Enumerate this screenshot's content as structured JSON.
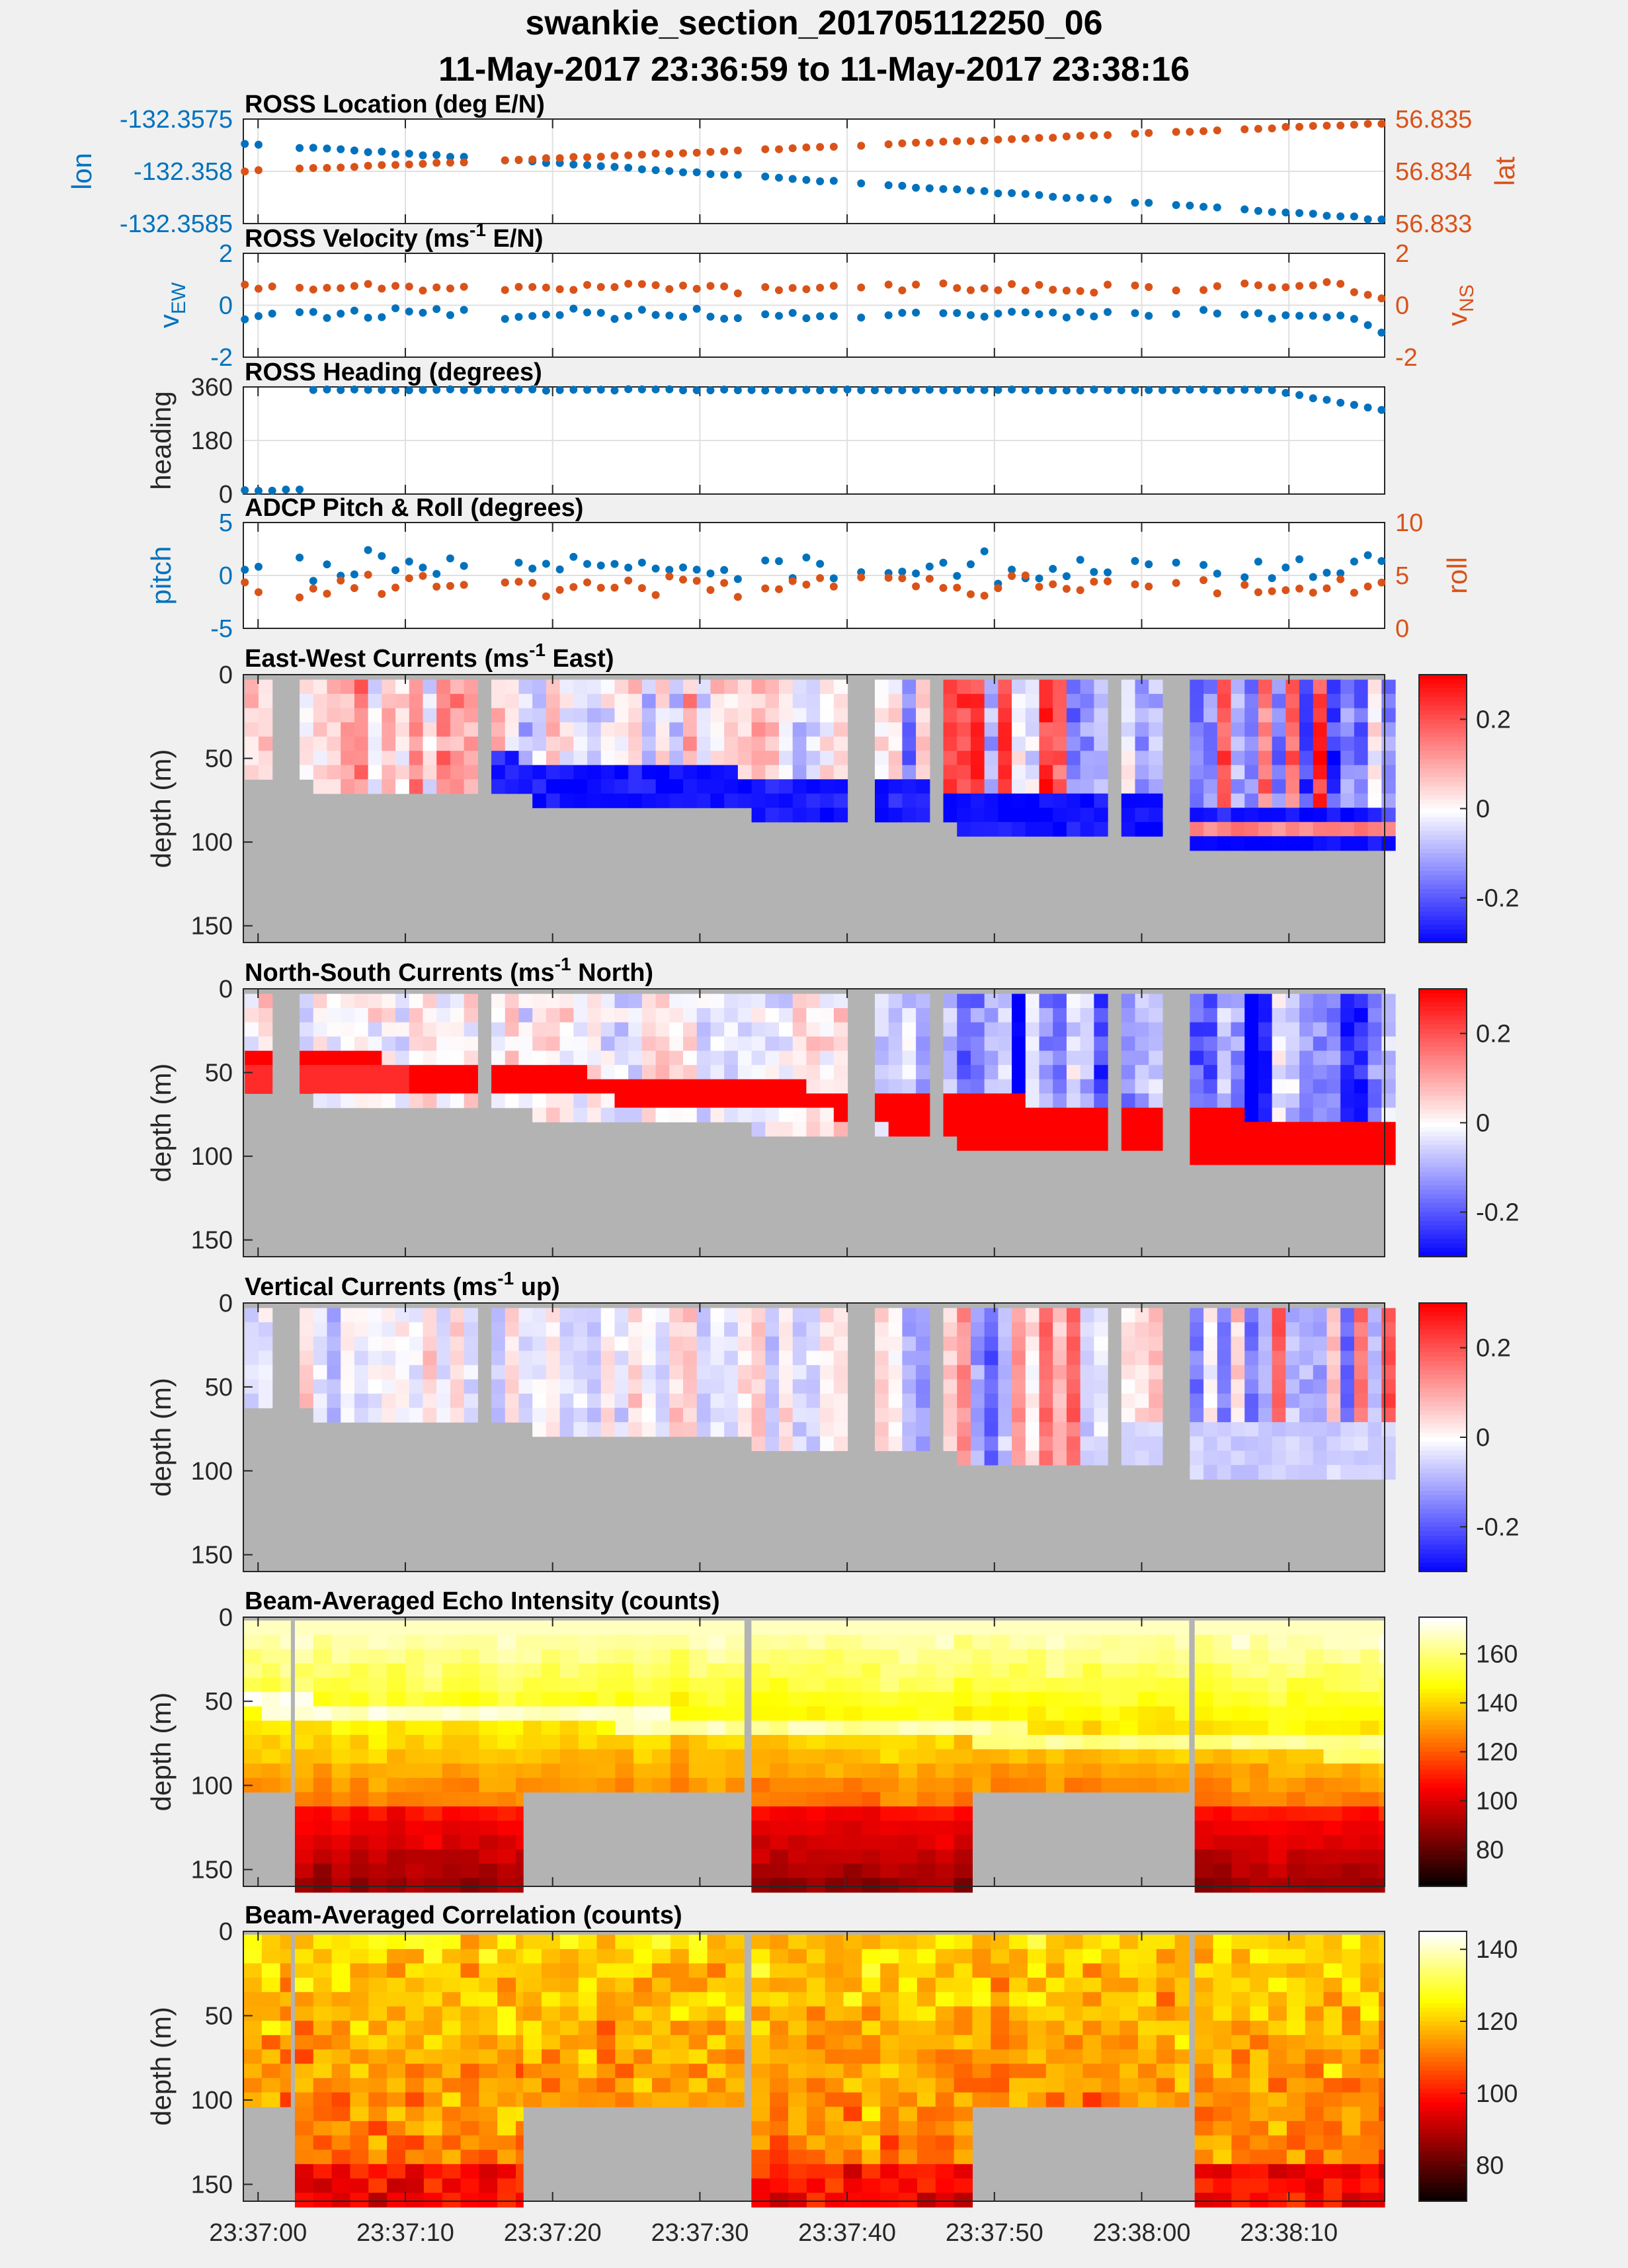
{
  "title": {
    "line1": "swankie_section_201705112250_06",
    "line2": "11-May-2017 23:36:59 to 11-May-2017 23:38:16"
  },
  "colors": {
    "blue": "#0072BD",
    "orange": "#D95319",
    "background": "#f0f0f0",
    "nodata": "#b3b3b3"
  },
  "time_axis": {
    "tick_labels": [
      "23:37:00",
      "23:37:10",
      "23:37:20",
      "23:37:30",
      "23:37:40",
      "23:37:50",
      "23:38:00",
      "23:38:10"
    ],
    "range_s": [
      -1,
      76.5
    ],
    "tick_s": [
      0,
      10,
      20,
      30,
      40,
      50,
      60,
      70
    ]
  },
  "gaps": {
    "velocity_gaps_s": [
      [
        0.9,
        2.5
      ],
      [
        14.7,
        16.2
      ],
      [
        33.1,
        33.6
      ],
      [
        40.0,
        42.2
      ],
      [
        45.2,
        46.3
      ],
      [
        58.1,
        58.7
      ],
      [
        61.4,
        62.1
      ],
      [
        62.8,
        63.5
      ],
      [
        65.8,
        66.4
      ]
    ],
    "echo_gaps_s": [
      [
        2.2,
        2.5
      ],
      [
        33.0,
        33.5
      ]
    ],
    "echo_blocks": [
      {
        "t": [
          -1,
          2.2
        ],
        "max_depth": 97
      },
      {
        "t": [
          2.5,
          18
        ],
        "max_depth": 160
      },
      {
        "t": [
          18,
          33
        ],
        "max_depth": 97
      },
      {
        "t": [
          33.5,
          48.5
        ],
        "max_depth": 160
      },
      {
        "t": [
          48.5,
          63.2
        ],
        "max_depth": 97
      },
      {
        "t": [
          63.6,
          76.5
        ],
        "max_depth": 160
      }
    ]
  },
  "chart_data": [
    {
      "type": "scatter",
      "title": "ROSS Location (deg E/N)",
      "ylabel_left": "lon",
      "ylabel_right": "lat",
      "ylim_left": [
        -132.3585,
        -132.3575
      ],
      "ylim_right": [
        56.833,
        56.835
      ],
      "ticks_left": [
        "-132.3575",
        "-132.358",
        "-132.3585"
      ],
      "ticks_right": [
        "56.835",
        "56.834",
        "56.833"
      ],
      "series": [
        {
          "name": "lon",
          "axis": "left",
          "start": -132.35774,
          "end": -132.35846
        },
        {
          "name": "lat",
          "axis": "right",
          "start": 56.834,
          "end": 56.83492
        }
      ]
    },
    {
      "type": "scatter",
      "title": "ROSS Velocity (ms",
      "title_sup": "-1",
      "title_tail": " E/N)",
      "ylabel_left": "v",
      "ylabel_left_sub": "EW",
      "ylabel_right": "v",
      "ylabel_right_sub": "NS",
      "ylim_left": [
        -3,
        3
      ],
      "ylim_right": [
        -3,
        3
      ],
      "ticks_left": [
        "2",
        "0",
        "-2"
      ],
      "ticks_right": [
        "2",
        "0",
        "-2"
      ],
      "series": [
        {
          "name": "vEW",
          "axis": "left",
          "typical": -0.5
        },
        {
          "name": "vNS",
          "axis": "right",
          "typical": 1.0
        }
      ]
    },
    {
      "type": "scatter",
      "title": "ROSS Heading (degrees)",
      "ylabel_left": "heading",
      "ylim_left": [
        0,
        360
      ],
      "ticks_left": [
        "360",
        "180",
        "0"
      ],
      "series": [
        {
          "name": "heading",
          "axis": "left",
          "start": 352,
          "end": 280
        }
      ]
    },
    {
      "type": "scatter",
      "title": "ADCP Pitch & Roll (degrees)",
      "ylabel_left": "pitch",
      "ylabel_right": "roll",
      "ylim_left": [
        -5,
        5
      ],
      "ylim_right": [
        0,
        10
      ],
      "ticks_left": [
        "5",
        "0",
        "-5"
      ],
      "ticks_right": [
        "10",
        "5",
        "0"
      ],
      "series": [
        {
          "name": "pitch",
          "axis": "left",
          "typical": 0.8
        },
        {
          "name": "roll",
          "axis": "right",
          "typical": 4.0
        }
      ]
    },
    {
      "type": "heatmap",
      "title": "East-West Currents (ms",
      "title_sup": "-1",
      "title_tail": " East)",
      "ylabel": "depth (m)",
      "ylim": [
        160,
        0
      ],
      "yticks": [
        "0",
        "50",
        "100",
        "150"
      ],
      "clim": [
        -0.3,
        0.3
      ],
      "colorbar_ticks": [
        "0.2",
        "0",
        "-0.2"
      ],
      "colormap": "blue-white-red",
      "kind": "ew"
    },
    {
      "type": "heatmap",
      "title": "North-South Currents (ms",
      "title_sup": "-1",
      "title_tail": " North)",
      "ylabel": "depth (m)",
      "ylim": [
        160,
        0
      ],
      "yticks": [
        "0",
        "50",
        "100",
        "150"
      ],
      "clim": [
        -0.3,
        0.3
      ],
      "colorbar_ticks": [
        "0.2",
        "0",
        "-0.2"
      ],
      "colormap": "blue-white-red",
      "kind": "ns"
    },
    {
      "type": "heatmap",
      "title": "Vertical Currents (ms",
      "title_sup": "-1",
      "title_tail": " up)",
      "ylabel": "depth (m)",
      "ylim": [
        160,
        0
      ],
      "yticks": [
        "0",
        "50",
        "100",
        "150"
      ],
      "clim": [
        -0.3,
        0.3
      ],
      "colorbar_ticks": [
        "0.2",
        "0",
        "-0.2"
      ],
      "colormap": "blue-white-red",
      "kind": "vert"
    },
    {
      "type": "heatmap",
      "title": "Beam-Averaged Echo Intensity (counts)",
      "ylabel": "depth (m)",
      "ylim": [
        160,
        0
      ],
      "yticks": [
        "0",
        "50",
        "100",
        "150"
      ],
      "clim": [
        65,
        175
      ],
      "colorbar_ticks": [
        "160",
        "140",
        "120",
        "100",
        "80"
      ],
      "colorbar_values": [
        160,
        140,
        120,
        100,
        80
      ],
      "colormap": "hot",
      "kind": "echo"
    },
    {
      "type": "heatmap",
      "title": "Beam-Averaged Correlation (counts)",
      "ylabel": "depth (m)",
      "ylim": [
        160,
        0
      ],
      "yticks": [
        "0",
        "50",
        "100",
        "150"
      ],
      "clim": [
        70,
        145
      ],
      "colorbar_ticks": [
        "140",
        "120",
        "100",
        "80"
      ],
      "colorbar_values": [
        140,
        120,
        100,
        80
      ],
      "colormap": "hot",
      "kind": "corr",
      "xticks": [
        "23:37:00",
        "23:37:10",
        "23:37:20",
        "23:37:30",
        "23:37:40",
        "23:37:50",
        "23:38:00",
        "23:38:10"
      ]
    }
  ]
}
